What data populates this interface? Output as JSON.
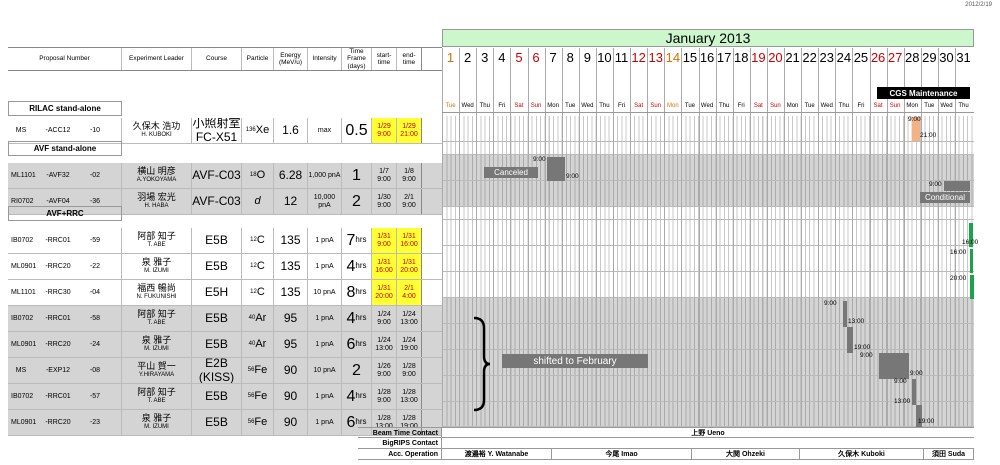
{
  "print_date": "2012/2/19",
  "month_title": "January 2013",
  "headers": {
    "proposal": "Proposal Number",
    "leader": "Experiment Leader",
    "course": "Course",
    "particle": "Particle",
    "energy": "Energy (MeV/u)",
    "intensity": "Intensity",
    "time_frame": "Time Frame (days)",
    "start": "start-time",
    "end": "end-time"
  },
  "sections": {
    "rilac": "RILAC stand-alone",
    "avf": "AVF stand-alone",
    "avfrrc": "AVF+RRC"
  },
  "colors": {
    "rilac": "#ffff99",
    "avf": "#33cccc",
    "avfrrc": "#ff99cc",
    "month_bg": "#ccf7cc",
    "yellow": "#ffff33"
  },
  "days": [
    {
      "n": "1",
      "d": "Tue",
      "c": "orange"
    },
    {
      "n": "2",
      "d": "Wed",
      "c": ""
    },
    {
      "n": "3",
      "d": "Thu",
      "c": ""
    },
    {
      "n": "4",
      "d": "Fri",
      "c": ""
    },
    {
      "n": "5",
      "d": "Sat",
      "c": "red"
    },
    {
      "n": "6",
      "d": "Sun",
      "c": "red"
    },
    {
      "n": "7",
      "d": "Mon",
      "c": ""
    },
    {
      "n": "8",
      "d": "Tue",
      "c": ""
    },
    {
      "n": "9",
      "d": "Wed",
      "c": ""
    },
    {
      "n": "10",
      "d": "Thu",
      "c": ""
    },
    {
      "n": "11",
      "d": "Fri",
      "c": ""
    },
    {
      "n": "12",
      "d": "Sat",
      "c": "red"
    },
    {
      "n": "13",
      "d": "Sun",
      "c": "red"
    },
    {
      "n": "14",
      "d": "Mon",
      "c": "orange"
    },
    {
      "n": "15",
      "d": "Tue",
      "c": ""
    },
    {
      "n": "16",
      "d": "Wed",
      "c": ""
    },
    {
      "n": "17",
      "d": "Thu",
      "c": ""
    },
    {
      "n": "18",
      "d": "Fri",
      "c": ""
    },
    {
      "n": "19",
      "d": "Sat",
      "c": "red"
    },
    {
      "n": "20",
      "d": "Sun",
      "c": "red"
    },
    {
      "n": "21",
      "d": "Mon",
      "c": ""
    },
    {
      "n": "22",
      "d": "Tue",
      "c": ""
    },
    {
      "n": "23",
      "d": "Wed",
      "c": ""
    },
    {
      "n": "24",
      "d": "Thu",
      "c": ""
    },
    {
      "n": "25",
      "d": "Fri",
      "c": ""
    },
    {
      "n": "26",
      "d": "Sat",
      "c": "red"
    },
    {
      "n": "27",
      "d": "Sun",
      "c": "red"
    },
    {
      "n": "28",
      "d": "Mon",
      "c": ""
    },
    {
      "n": "29",
      "d": "Tue",
      "c": ""
    },
    {
      "n": "30",
      "d": "Wed",
      "c": ""
    },
    {
      "n": "31",
      "d": "Thu",
      "c": ""
    }
  ],
  "rows": [
    {
      "a": "MS",
      "b": "-ACC12",
      "c": "-10",
      "lead_j": "久保木 浩功",
      "lead_r": "H. KUBOKI",
      "course": "小照射室 FC-X51",
      "mass": "136",
      "el": "Xe",
      "energy": "1.6",
      "intensity": "max",
      "tf": "0.5",
      "hrs": "",
      "st1": "1/29",
      "st2": "9:00",
      "et1": "1/29",
      "et2": "21:00",
      "yellow": true,
      "gray": false
    },
    {
      "a": "ML1101",
      "b": "-AVF32",
      "c": "-02",
      "lead_j": "横山 明彦",
      "lead_r": "A.YOKOYAMA",
      "course": "AVF-C03",
      "mass": "18",
      "el": "O",
      "energy": "6.28",
      "intensity": "1,000 pnA",
      "tf": "1",
      "hrs": "",
      "st1": "1/7",
      "st2": "9:00",
      "et1": "1/8",
      "et2": "9:00",
      "yellow": false,
      "gray": true
    },
    {
      "a": "RI0702",
      "b": "-AVF04",
      "c": "-36",
      "lead_j": "羽場 宏光",
      "lead_r": "H. HABA",
      "course": "AVF-C03",
      "mass": "",
      "el": "d",
      "energy": "12",
      "intensity": "10,000 pnA",
      "tf": "2",
      "hrs": "",
      "st1": "1/30",
      "st2": "9:00",
      "et1": "2/1",
      "et2": "9:00",
      "yellow": false,
      "gray": true
    },
    {
      "a": "IB0702",
      "b": "-RRC01",
      "c": "-59",
      "lead_j": "阿部 知子",
      "lead_r": "T. ABE",
      "course": "E5B",
      "mass": "12",
      "el": "C",
      "energy": "135",
      "intensity": "1 pnA",
      "tf": "7",
      "hrs": "hrs",
      "st1": "1/31",
      "st2": "9:00",
      "et1": "1/31",
      "et2": "16:00",
      "yellow": true,
      "gray": false
    },
    {
      "a": "ML0901",
      "b": "-RRC20",
      "c": "-22",
      "lead_j": "泉 雅子",
      "lead_r": "M. IZUMI",
      "course": "E5B",
      "mass": "12",
      "el": "C",
      "energy": "135",
      "intensity": "1 pnA",
      "tf": "4",
      "hrs": "hrs",
      "st1": "1/31",
      "st2": "16:00",
      "et1": "1/31",
      "et2": "20:00",
      "yellow": true,
      "gray": false
    },
    {
      "a": "ML1101",
      "b": "-RRC30",
      "c": "-04",
      "lead_j": "福西 暢尚",
      "lead_r": "N. FUKUNISHI",
      "course": "E5H",
      "mass": "12",
      "el": "C",
      "energy": "135",
      "intensity": "10 pnA",
      "tf": "8",
      "hrs": "hrs",
      "st1": "1/31",
      "st2": "20:00",
      "et1": "2/1",
      "et2": "4:00",
      "yellow": true,
      "gray": false
    },
    {
      "a": "IB0702",
      "b": "-RRC01",
      "c": "-58",
      "lead_j": "阿部 知子",
      "lead_r": "T. ABE",
      "course": "E5B",
      "mass": "40",
      "el": "Ar",
      "energy": "95",
      "intensity": "1 pnA",
      "tf": "4",
      "hrs": "hrs",
      "st1": "1/24",
      "st2": "9:00",
      "et1": "1/24",
      "et2": "13:00",
      "yellow": false,
      "gray": true
    },
    {
      "a": "ML0901",
      "b": "-RRC20",
      "c": "-24",
      "lead_j": "泉 雅子",
      "lead_r": "M. IZUMI",
      "course": "E5B",
      "mass": "40",
      "el": "Ar",
      "energy": "95",
      "intensity": "1 pnA",
      "tf": "6",
      "hrs": "hrs",
      "st1": "1/24",
      "st2": "13:00",
      "et1": "1/24",
      "et2": "19:00",
      "yellow": false,
      "gray": true
    },
    {
      "a": "MS",
      "b": "-EXP12",
      "c": "-08",
      "lead_j": "平山 賀一",
      "lead_r": "Y.HIRAYAMA",
      "course": "E2B (KISS)",
      "mass": "56",
      "el": "Fe",
      "energy": "90",
      "intensity": "10 pnA",
      "tf": "2",
      "hrs": "",
      "st1": "1/26",
      "st2": "9:00",
      "et1": "1/28",
      "et2": "9:00",
      "yellow": false,
      "gray": true
    },
    {
      "a": "IB0702",
      "b": "-RRC01",
      "c": "-57",
      "lead_j": "阿部 知子",
      "lead_r": "T. ABE",
      "course": "E5B",
      "mass": "56",
      "el": "Fe",
      "energy": "90",
      "intensity": "1 pnA",
      "tf": "4",
      "hrs": "hrs",
      "st1": "1/28",
      "st2": "9:00",
      "et1": "1/28",
      "et2": "13:00",
      "yellow": false,
      "gray": true
    },
    {
      "a": "ML0901",
      "b": "-RRC20",
      "c": "-23",
      "lead_j": "泉 雅子",
      "lead_r": "M. IZUMI",
      "course": "E5B",
      "mass": "56",
      "el": "Fe",
      "energy": "90",
      "intensity": "1 pnA",
      "tf": "6",
      "hrs": "hrs",
      "st1": "1/28",
      "st2": "13:00",
      "et1": "1/28",
      "et2": "19:00",
      "yellow": false,
      "gray": true
    }
  ],
  "annotations": {
    "cgs": "CGS Maintenance",
    "canceled": "Canceled",
    "conditional": "Conditional",
    "shifted": "shifted to February",
    "t_rilac_s": "9:00",
    "t_rilac_e": "21:00",
    "t_can_s": "9:00",
    "t_can_e": "9:00",
    "t_cond": "9:00",
    "t_abe1": "16:00",
    "t_izumi1": "16:00",
    "t_izumi1e": "20:00",
    "t_fuku": "20:00",
    "t_ar1s": "9:00",
    "t_ar1e": "13:00",
    "t_ar2e": "19:00",
    "t_fe_s": "9:00",
    "t_fe_e": "9:00",
    "t_fe2s": "9:00",
    "t_fe2e": "13:00",
    "t_fe3e": "19:00"
  },
  "contacts": {
    "beam_label": "Beam Time Contact",
    "beam_value": "上野 Ueno",
    "bigrips_label": "BigRIPS Contact",
    "acc_label": "Acc. Operation",
    "acc_values": [
      "渡邉裕 Y. Watanabe",
      "今尾 Imao",
      "大関 Ohzeki",
      "久保木 Kuboki",
      "須田 Suda"
    ]
  }
}
